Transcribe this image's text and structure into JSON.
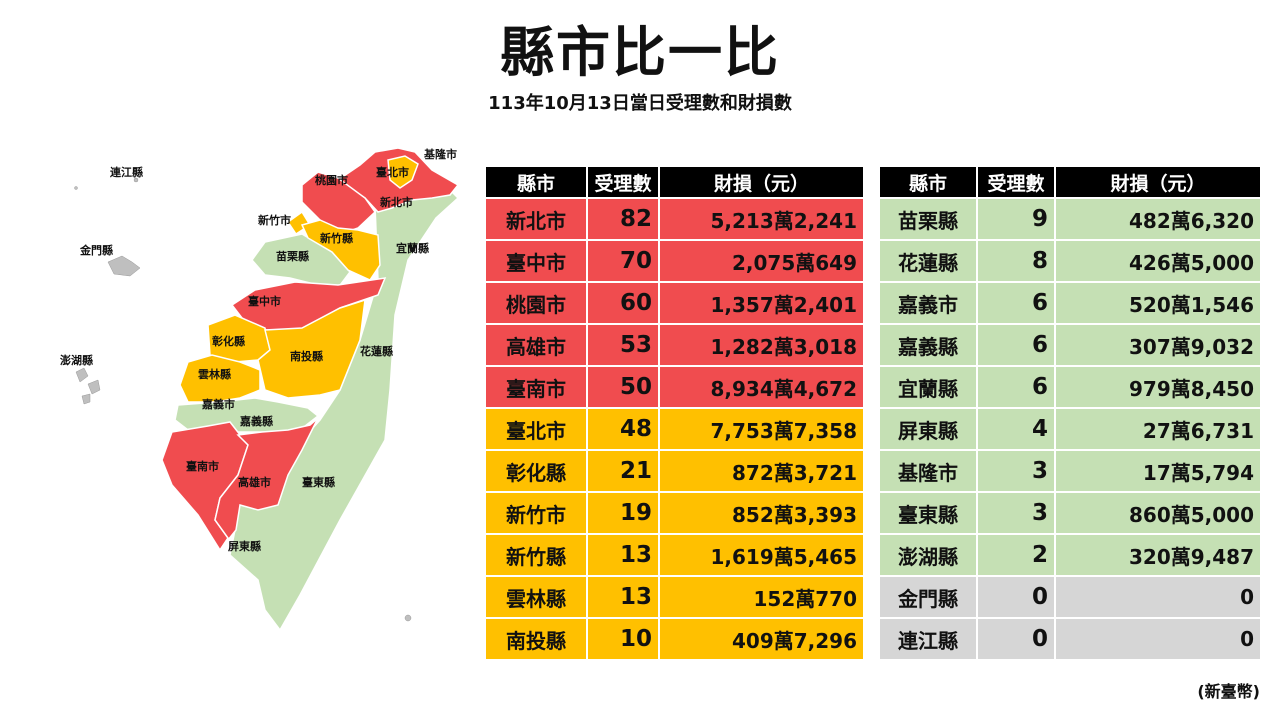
{
  "title": "縣市比一比",
  "subtitle": "113年10月13日當日受理數和財損數",
  "headers": {
    "county": "縣市",
    "count": "受理數",
    "loss": "財損（元）"
  },
  "colors": {
    "high": "#f04c4f",
    "mid": "#ffc000",
    "low": "#c5e0b4",
    "none": "#d6d6d6"
  },
  "left_rows": [
    {
      "county": "新北市",
      "count": "82",
      "loss": "5,213萬2,241",
      "level": "red"
    },
    {
      "county": "臺中市",
      "count": "70",
      "loss": "2,075萬649",
      "level": "red"
    },
    {
      "county": "桃園市",
      "count": "60",
      "loss": "1,357萬2,401",
      "level": "red"
    },
    {
      "county": "高雄市",
      "count": "53",
      "loss": "1,282萬3,018",
      "level": "red"
    },
    {
      "county": "臺南市",
      "count": "50",
      "loss": "8,934萬4,672",
      "level": "red"
    },
    {
      "county": "臺北市",
      "count": "48",
      "loss": "7,753萬7,358",
      "level": "yellow"
    },
    {
      "county": "彰化縣",
      "count": "21",
      "loss": "872萬3,721",
      "level": "yellow"
    },
    {
      "county": "新竹市",
      "count": "19",
      "loss": "852萬3,393",
      "level": "yellow"
    },
    {
      "county": "新竹縣",
      "count": "13",
      "loss": "1,619萬5,465",
      "level": "yellow"
    },
    {
      "county": "雲林縣",
      "count": "13",
      "loss": "152萬770",
      "level": "yellow"
    },
    {
      "county": "南投縣",
      "count": "10",
      "loss": "409萬7,296",
      "level": "yellow"
    }
  ],
  "right_rows": [
    {
      "county": "苗栗縣",
      "count": "9",
      "loss": "482萬6,320",
      "level": "green"
    },
    {
      "county": "花蓮縣",
      "count": "8",
      "loss": "426萬5,000",
      "level": "green"
    },
    {
      "county": "嘉義市",
      "count": "6",
      "loss": "520萬1,546",
      "level": "green"
    },
    {
      "county": "嘉義縣",
      "count": "6",
      "loss": "307萬9,032",
      "level": "green"
    },
    {
      "county": "宜蘭縣",
      "count": "6",
      "loss": "979萬8,450",
      "level": "green"
    },
    {
      "county": "屏東縣",
      "count": "4",
      "loss": "27萬6,731",
      "level": "green"
    },
    {
      "county": "基隆市",
      "count": "3",
      "loss": "17萬5,794",
      "level": "green"
    },
    {
      "county": "臺東縣",
      "count": "3",
      "loss": "860萬5,000",
      "level": "green"
    },
    {
      "county": "澎湖縣",
      "count": "2",
      "loss": "320萬9,487",
      "level": "green"
    },
    {
      "county": "金門縣",
      "count": "0",
      "loss": "0",
      "level": "gray"
    },
    {
      "county": "連江縣",
      "count": "0",
      "loss": "0",
      "level": "gray"
    }
  ],
  "map_labels": {
    "keelung": "基隆市",
    "taipei": "臺北市",
    "new_taipei": "新北市",
    "taoyuan": "桃園市",
    "hsinchu_city": "新竹市",
    "hsinchu_county": "新竹縣",
    "yilan": "宜蘭縣",
    "miaoli": "苗栗縣",
    "taichung": "臺中市",
    "changhua": "彰化縣",
    "nantou": "南投縣",
    "hualien": "花蓮縣",
    "yunlin": "雲林縣",
    "chiayi_city": "嘉義市",
    "chiayi_county": "嘉義縣",
    "tainan": "臺南市",
    "kaohsiung": "高雄市",
    "taitung": "臺東縣",
    "pingtung": "屏東縣",
    "lienchiang": "連江縣",
    "kinmen": "金門縣",
    "penghu": "澎湖縣"
  },
  "currency_note": "(新臺幣)"
}
